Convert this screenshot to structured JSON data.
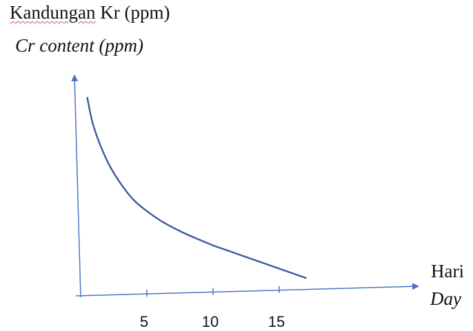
{
  "chart_data": {
    "type": "line",
    "ylabel": "Kandungan Kr (ppm)",
    "ylabel_squiggle_part": "Kandungan",
    "ylabel_rest": " Kr (ppm)",
    "ylabel_en": "Cr content (ppm)",
    "xlabel": "Hari",
    "xlabel_en": "Day",
    "x_ticks": [
      5,
      10,
      15
    ],
    "xlim": [
      0,
      23
    ],
    "grid": false,
    "legend": "none",
    "line_color": "#3a5a9a",
    "axis_color": "#4a74c4",
    "series": [
      {
        "x": [
          0.5,
          1,
          2,
          3,
          4,
          5,
          6,
          7,
          8,
          9,
          10,
          11,
          12,
          13,
          14,
          15,
          16,
          17
        ],
        "values": [
          100,
          84,
          66,
          54,
          45,
          39,
          34,
          30,
          26.5,
          23.5,
          20.5,
          18,
          15.5,
          13,
          10.5,
          8,
          5.5,
          3
        ]
      }
    ]
  }
}
